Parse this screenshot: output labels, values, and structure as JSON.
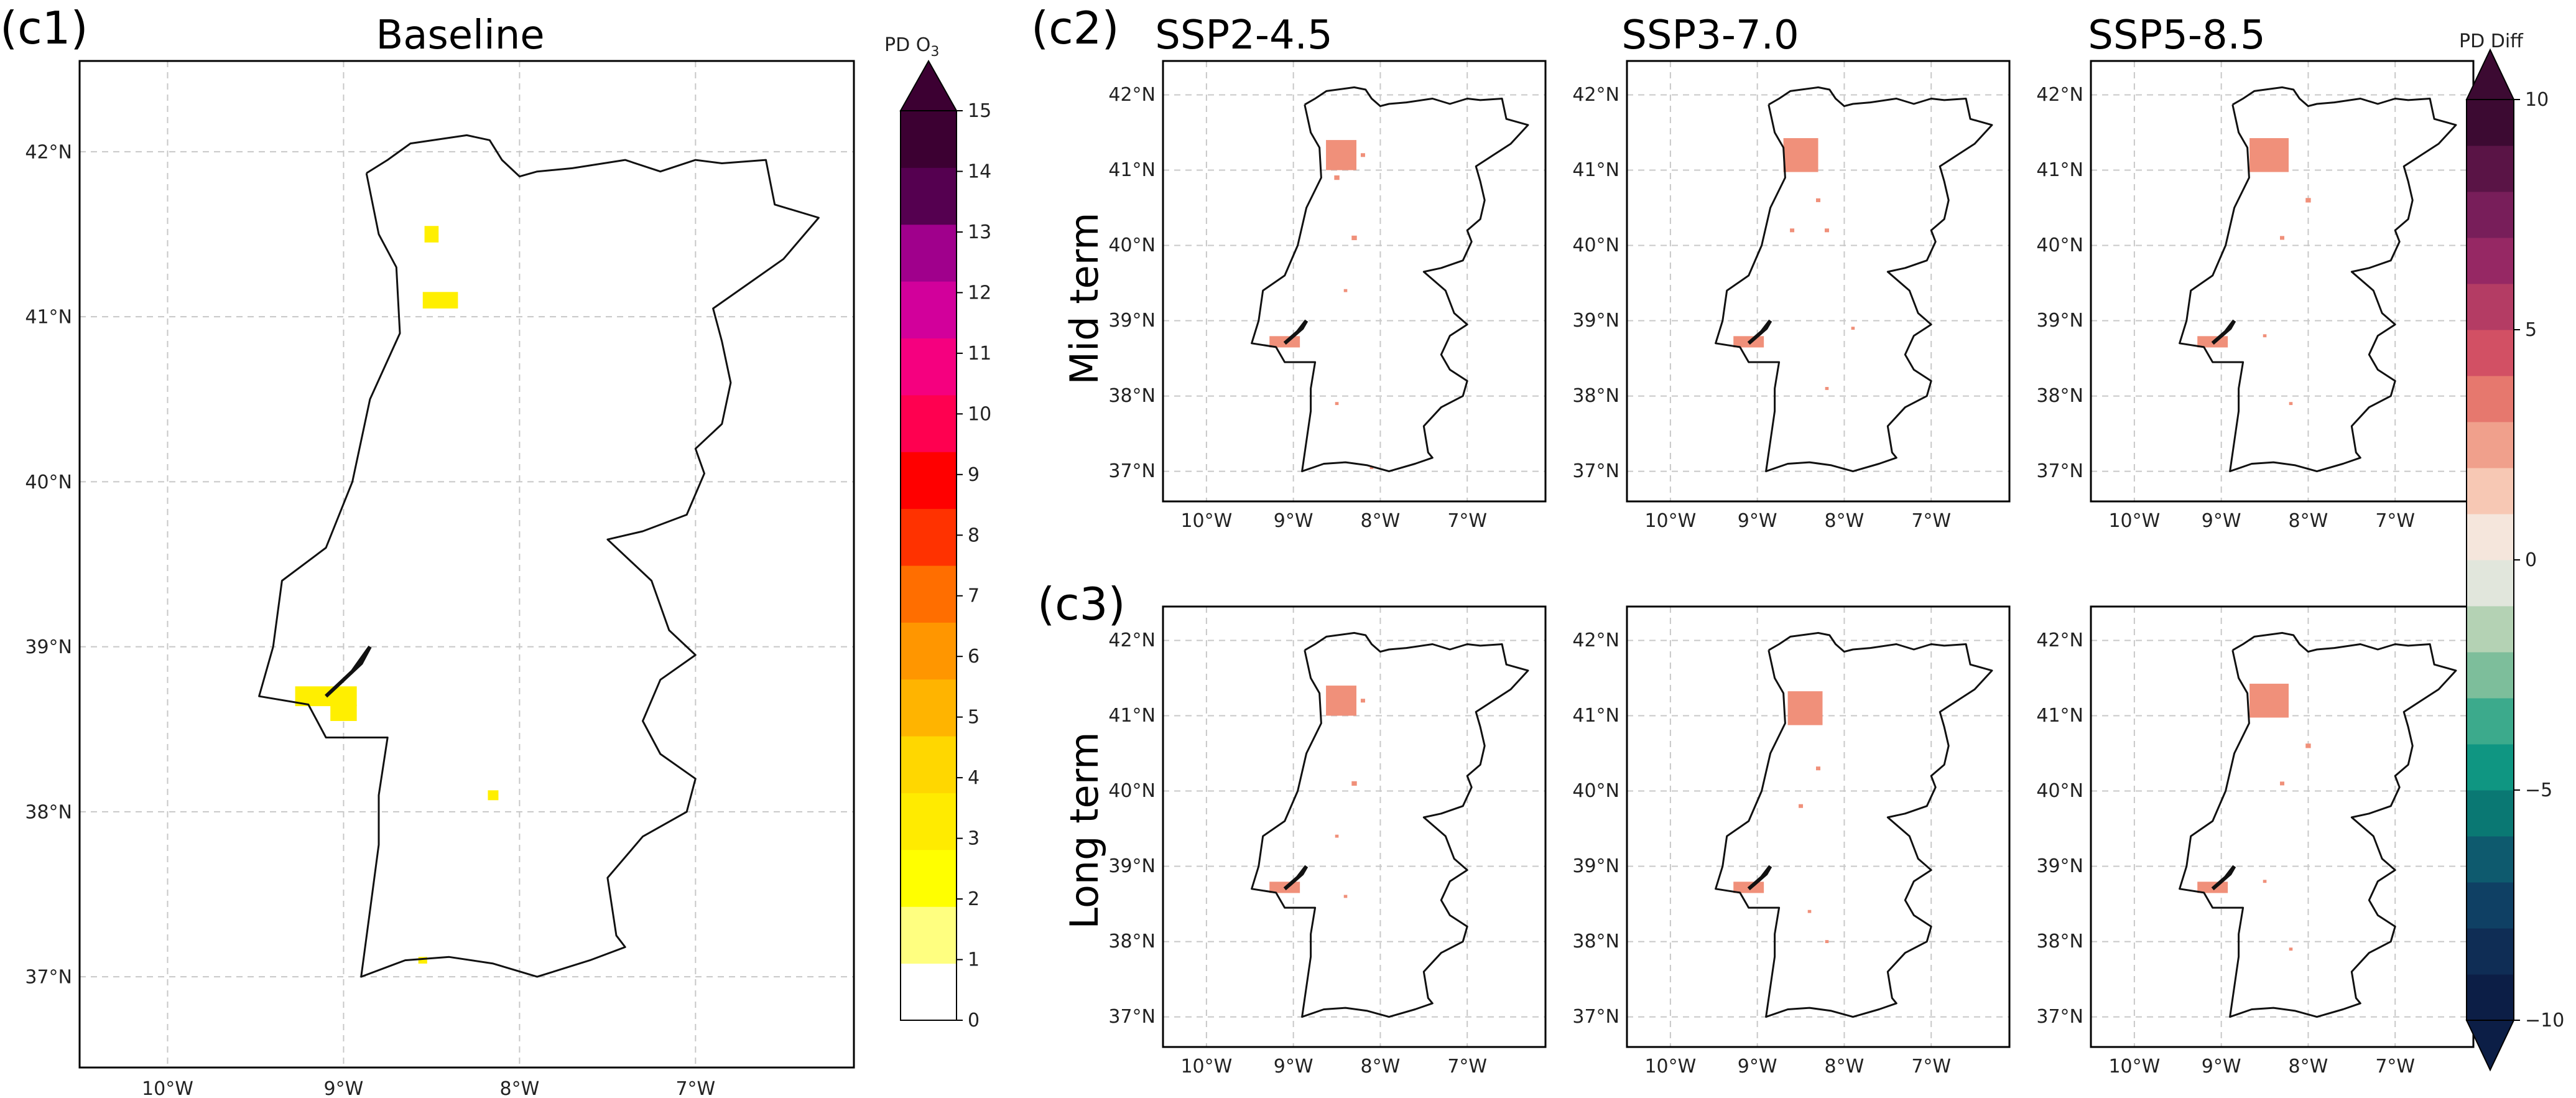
{
  "panels": {
    "c1": {
      "label": "(c1)",
      "title": "Baseline",
      "lat_ticks": [
        "42°N",
        "41°N",
        "40°N",
        "39°N",
        "38°N",
        "37°N"
      ],
      "lon_ticks": [
        "10°W",
        "9°W",
        "8°W",
        "7°W"
      ],
      "hotspots": [
        {
          "lon": -8.45,
          "lat": 41.1,
          "w": 0.2,
          "h": 0.1,
          "value": 1.8
        },
        {
          "lon": -8.5,
          "lat": 41.5,
          "w": 0.08,
          "h": 0.1,
          "value": 1.8
        },
        {
          "lon": -9.1,
          "lat": 38.7,
          "w": 0.35,
          "h": 0.12,
          "value": 2.2
        },
        {
          "lon": -9.0,
          "lat": 38.6,
          "w": 0.15,
          "h": 0.1,
          "value": 1.8
        },
        {
          "lon": -8.15,
          "lat": 38.1,
          "w": 0.06,
          "h": 0.06,
          "value": 1.2
        },
        {
          "lon": -8.55,
          "lat": 37.1,
          "w": 0.05,
          "h": 0.04,
          "value": 1.2
        }
      ]
    },
    "c2": {
      "label": "(c2)",
      "row_label": "Mid term"
    },
    "c3": {
      "label": "(c3)",
      "row_label": "Long term"
    },
    "columns": [
      "SSP2-4.5",
      "SSP3-7.0",
      "SSP5-8.5"
    ],
    "small_lat_ticks": [
      "42°N",
      "41°N",
      "40°N",
      "39°N",
      "38°N",
      "37°N"
    ],
    "small_lon_ticks": [
      "10°W",
      "9°W",
      "8°W",
      "7°W"
    ]
  },
  "colorbar_o3": {
    "title": "PD O",
    "title_sub": "3",
    "ticks": [
      "0",
      "1",
      "2",
      "3",
      "4",
      "5",
      "6",
      "7",
      "8",
      "9",
      "10",
      "11",
      "12",
      "13",
      "14",
      "15"
    ],
    "min": 0,
    "max": 15,
    "colors": [
      "#ffffff",
      "#ffff80",
      "#ffff00",
      "#ffeb00",
      "#ffd700",
      "#ffb400",
      "#ff9600",
      "#ff6e00",
      "#ff3200",
      "#ff0000",
      "#ff0050",
      "#f5007f",
      "#d2009b",
      "#a0008c",
      "#550050",
      "#3c0032"
    ]
  },
  "colorbar_diff": {
    "title": "PD Diff",
    "ticks": [
      "−10",
      "−5",
      "0",
      "5",
      "10"
    ],
    "tick_values": [
      -10,
      -5,
      0,
      5,
      10
    ],
    "min": -10,
    "max": 10,
    "colors": [
      "#0c1e46",
      "#0f2d55",
      "#0f4064",
      "#0e5a6e",
      "#0a7873",
      "#0f9682",
      "#3caa8c",
      "#7dbe9b",
      "#b4d2b4",
      "#e1e6dc",
      "#f5e6dc",
      "#f7c8b4",
      "#f0a08c",
      "#e6786e",
      "#d25064",
      "#b43c64",
      "#962864",
      "#781e5a",
      "#5a1446",
      "#3c0a32"
    ]
  },
  "diff_hotspots": {
    "mid": [
      [
        {
          "lon": -8.45,
          "lat": 41.2,
          "w": 0.35,
          "h": 0.4
        },
        {
          "lon": -9.1,
          "lat": 38.72,
          "w": 0.35,
          "h": 0.15
        },
        {
          "lon": -8.5,
          "lat": 40.9,
          "w": 0.06,
          "h": 0.06
        },
        {
          "lon": -8.2,
          "lat": 41.2,
          "w": 0.05,
          "h": 0.05
        },
        {
          "lon": -8.3,
          "lat": 40.1,
          "w": 0.06,
          "h": 0.06
        },
        {
          "lon": -8.4,
          "lat": 39.4,
          "w": 0.04,
          "h": 0.04
        },
        {
          "lon": -8.5,
          "lat": 37.9,
          "w": 0.04,
          "h": 0.04
        },
        {
          "lon": -8.1,
          "lat": 37.05,
          "w": 0.04,
          "h": 0.04
        }
      ],
      [
        {
          "lon": -8.5,
          "lat": 41.2,
          "w": 0.4,
          "h": 0.45
        },
        {
          "lon": -9.1,
          "lat": 38.72,
          "w": 0.35,
          "h": 0.15
        },
        {
          "lon": -8.3,
          "lat": 40.6,
          "w": 0.05,
          "h": 0.05
        },
        {
          "lon": -8.2,
          "lat": 40.2,
          "w": 0.05,
          "h": 0.05
        },
        {
          "lon": -8.6,
          "lat": 40.2,
          "w": 0.05,
          "h": 0.05
        },
        {
          "lon": -7.9,
          "lat": 38.9,
          "w": 0.04,
          "h": 0.04
        },
        {
          "lon": -8.2,
          "lat": 38.1,
          "w": 0.04,
          "h": 0.04
        }
      ],
      [
        {
          "lon": -8.45,
          "lat": 41.2,
          "w": 0.45,
          "h": 0.45
        },
        {
          "lon": -9.1,
          "lat": 38.72,
          "w": 0.35,
          "h": 0.15
        },
        {
          "lon": -8.0,
          "lat": 40.6,
          "w": 0.06,
          "h": 0.06
        },
        {
          "lon": -8.3,
          "lat": 40.1,
          "w": 0.05,
          "h": 0.05
        },
        {
          "lon": -8.5,
          "lat": 38.8,
          "w": 0.04,
          "h": 0.04
        },
        {
          "lon": -8.2,
          "lat": 37.9,
          "w": 0.04,
          "h": 0.04
        }
      ]
    ],
    "long": [
      [
        {
          "lon": -8.45,
          "lat": 41.2,
          "w": 0.35,
          "h": 0.4
        },
        {
          "lon": -9.1,
          "lat": 38.72,
          "w": 0.35,
          "h": 0.15
        },
        {
          "lon": -8.3,
          "lat": 40.1,
          "w": 0.06,
          "h": 0.06
        },
        {
          "lon": -8.2,
          "lat": 41.2,
          "w": 0.05,
          "h": 0.05
        },
        {
          "lon": -8.5,
          "lat": 39.4,
          "w": 0.04,
          "h": 0.04
        },
        {
          "lon": -8.4,
          "lat": 38.6,
          "w": 0.04,
          "h": 0.04
        }
      ],
      [
        {
          "lon": -8.45,
          "lat": 41.1,
          "w": 0.4,
          "h": 0.45
        },
        {
          "lon": -9.1,
          "lat": 38.72,
          "w": 0.35,
          "h": 0.15
        },
        {
          "lon": -8.3,
          "lat": 40.3,
          "w": 0.05,
          "h": 0.05
        },
        {
          "lon": -8.5,
          "lat": 39.8,
          "w": 0.05,
          "h": 0.05
        },
        {
          "lon": -8.4,
          "lat": 38.4,
          "w": 0.04,
          "h": 0.04
        },
        {
          "lon": -8.2,
          "lat": 38.0,
          "w": 0.04,
          "h": 0.04
        }
      ],
      [
        {
          "lon": -8.45,
          "lat": 41.2,
          "w": 0.45,
          "h": 0.45
        },
        {
          "lon": -9.1,
          "lat": 38.72,
          "w": 0.35,
          "h": 0.15
        },
        {
          "lon": -8.0,
          "lat": 40.6,
          "w": 0.06,
          "h": 0.06
        },
        {
          "lon": -8.3,
          "lat": 40.1,
          "w": 0.05,
          "h": 0.05
        },
        {
          "lon": -8.5,
          "lat": 38.8,
          "w": 0.04,
          "h": 0.04
        },
        {
          "lon": -8.2,
          "lat": 37.9,
          "w": 0.04,
          "h": 0.04
        }
      ]
    ]
  },
  "colors": {
    "coast": "#111111",
    "grid": "#c8c8c8",
    "hotspot_baseline": "#ffef00",
    "hotspot_diff": "#f0907a"
  }
}
